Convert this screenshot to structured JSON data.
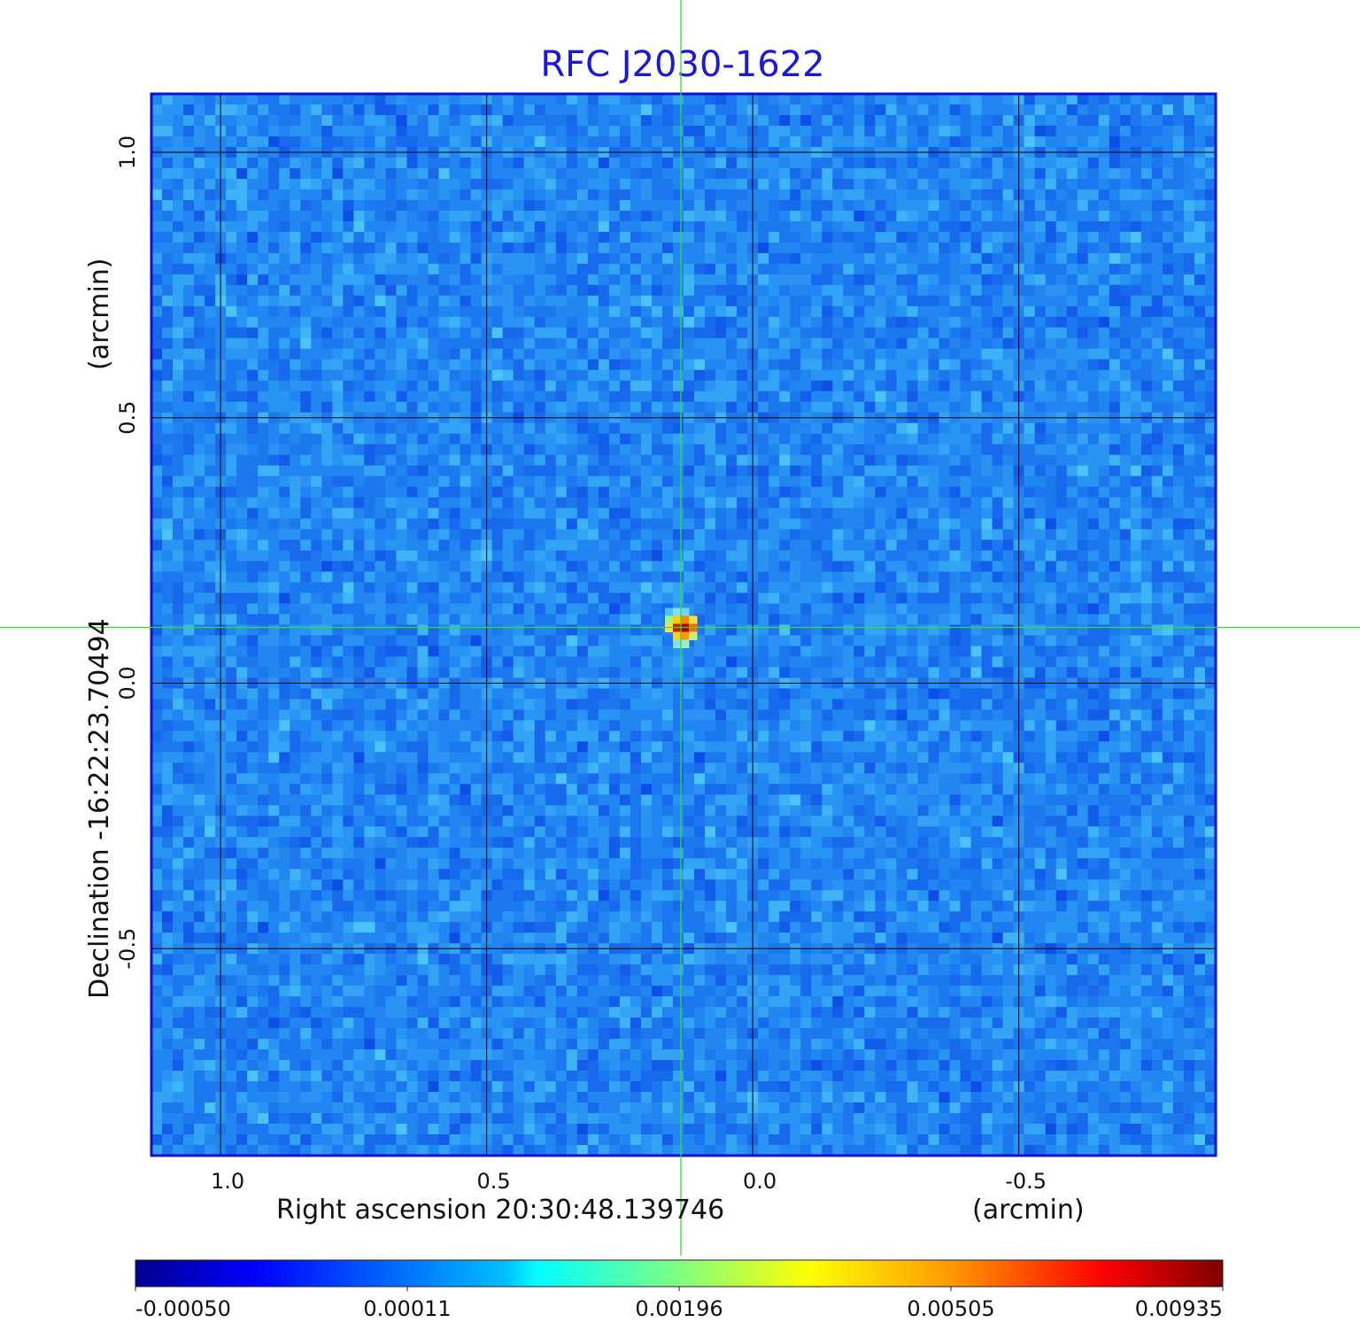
{
  "title": "RFC J2030-1622",
  "x_axis": {
    "label": "Right ascension  20:30:48.139746",
    "unit": "(arcmin)",
    "ticks": [
      1.0,
      0.5,
      0.0,
      -0.5
    ],
    "tick_labels": [
      "1.0",
      "0.5",
      "0.0",
      "-0.5"
    ],
    "range": [
      1.13,
      -0.87
    ]
  },
  "y_axis": {
    "label": "Declination  -16:22:23.70494",
    "unit": "(arcmin)",
    "ticks": [
      1.0,
      0.5,
      0.0,
      -0.5
    ],
    "tick_labels": [
      "1.0",
      "0.5",
      "0.0",
      "-0.5"
    ],
    "range": [
      -0.89,
      1.11
    ]
  },
  "source": {
    "ra_offset_arcmin": 0.135,
    "dec_offset_arcmin": 0.105
  },
  "crosshair_color": "#33dd33",
  "grid": true,
  "colorbar": {
    "colormap": "jet",
    "tick_labels": [
      "-0.00050",
      "0.00011",
      "0.00196",
      "0.00505",
      "0.00935"
    ],
    "min": -0.0005,
    "max": 0.00935
  },
  "colors": {
    "title": "#1a1ad6",
    "frame": "#1010d0",
    "grid": "#000000"
  }
}
